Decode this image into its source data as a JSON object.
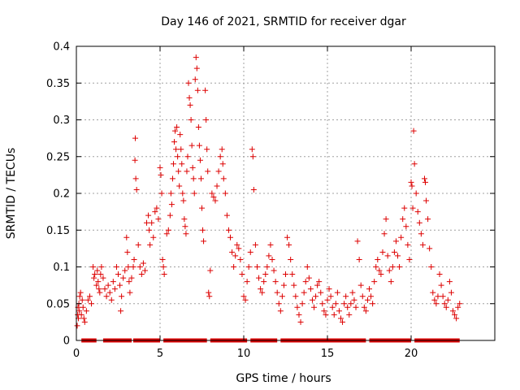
{
  "chart_data": {
    "type": "scatter",
    "title": "Day 146 of 2021, SRMTID for receiver dgar",
    "xlabel": "GPS time / hours",
    "ylabel": "SRMTID / TECUs",
    "xlim": [
      0,
      25
    ],
    "ylim": [
      0,
      0.4
    ],
    "x_ticks": [
      0,
      5,
      10,
      15,
      20
    ],
    "y_ticks": [
      0,
      0.05,
      0.1,
      0.15,
      0.2,
      0.25,
      0.3,
      0.35,
      0.4
    ],
    "x_tick_labels": [
      "0",
      "5",
      "10",
      "15",
      "20"
    ],
    "y_tick_labels": [
      "0",
      "0.05",
      "0.1",
      "0.15",
      "0.2",
      "0.25",
      "0.3",
      "0.35",
      "0.4"
    ],
    "grid": true,
    "marker": "plus",
    "series_color": "#dd0000",
    "series": [
      {
        "name": "SRMTID",
        "points": [
          [
            0.05,
            0.02
          ],
          [
            0.08,
            0.035
          ],
          [
            0.1,
            0.045
          ],
          [
            0.12,
            0.03
          ],
          [
            0.15,
            0.05
          ],
          [
            0.18,
            0.04
          ],
          [
            0.2,
            0.06
          ],
          [
            0.25,
            0.065
          ],
          [
            0.3,
            0.035
          ],
          [
            0.35,
            0.055
          ],
          [
            0.4,
            0.045
          ],
          [
            0.45,
            0.03
          ],
          [
            0.5,
            0.025
          ],
          [
            0.6,
            0.04
          ],
          [
            0.7,
            0.055
          ],
          [
            0.8,
            0.06
          ],
          [
            0.9,
            0.05
          ],
          [
            1.0,
            0.1
          ],
          [
            1.05,
            0.085
          ],
          [
            1.1,
            0.09
          ],
          [
            1.2,
            0.075
          ],
          [
            1.25,
            0.095
          ],
          [
            1.3,
            0.08
          ],
          [
            1.35,
            0.07
          ],
          [
            1.4,
            0.065
          ],
          [
            1.45,
            0.09
          ],
          [
            1.5,
            0.1
          ],
          [
            1.6,
            0.085
          ],
          [
            1.7,
            0.07
          ],
          [
            1.8,
            0.06
          ],
          [
            1.9,
            0.075
          ],
          [
            2.0,
            0.065
          ],
          [
            2.1,
            0.055
          ],
          [
            2.2,
            0.08
          ],
          [
            2.3,
            0.07
          ],
          [
            2.4,
            0.1
          ],
          [
            2.5,
            0.09
          ],
          [
            2.6,
            0.075
          ],
          [
            2.65,
            0.04
          ],
          [
            2.7,
            0.06
          ],
          [
            2.8,
            0.085
          ],
          [
            2.9,
            0.095
          ],
          [
            3.0,
            0.14
          ],
          [
            3.05,
            0.12
          ],
          [
            3.1,
            0.1
          ],
          [
            3.15,
            0.08
          ],
          [
            3.2,
            0.065
          ],
          [
            3.3,
            0.085
          ],
          [
            3.4,
            0.1
          ],
          [
            3.45,
            0.11
          ],
          [
            3.5,
            0.245
          ],
          [
            3.52,
            0.275
          ],
          [
            3.55,
            0.22
          ],
          [
            3.6,
            0.205
          ],
          [
            3.7,
            0.13
          ],
          [
            3.8,
            0.1
          ],
          [
            3.9,
            0.09
          ],
          [
            4.0,
            0.105
          ],
          [
            4.1,
            0.095
          ],
          [
            4.2,
            0.16
          ],
          [
            4.3,
            0.17
          ],
          [
            4.35,
            0.15
          ],
          [
            4.4,
            0.13
          ],
          [
            4.5,
            0.16
          ],
          [
            4.6,
            0.14
          ],
          [
            4.7,
            0.175
          ],
          [
            4.8,
            0.18
          ],
          [
            4.9,
            0.165
          ],
          [
            5.0,
            0.235
          ],
          [
            5.05,
            0.225
          ],
          [
            5.1,
            0.2
          ],
          [
            5.15,
            0.11
          ],
          [
            5.2,
            0.1
          ],
          [
            5.25,
            0.09
          ],
          [
            5.4,
            0.145
          ],
          [
            5.5,
            0.15
          ],
          [
            5.6,
            0.17
          ],
          [
            5.65,
            0.2
          ],
          [
            5.7,
            0.185
          ],
          [
            5.75,
            0.22
          ],
          [
            5.8,
            0.24
          ],
          [
            5.85,
            0.27
          ],
          [
            5.9,
            0.285
          ],
          [
            5.95,
            0.26
          ],
          [
            6.0,
            0.29
          ],
          [
            6.05,
            0.25
          ],
          [
            6.1,
            0.23
          ],
          [
            6.15,
            0.21
          ],
          [
            6.2,
            0.28
          ],
          [
            6.25,
            0.26
          ],
          [
            6.3,
            0.24
          ],
          [
            6.35,
            0.2
          ],
          [
            6.4,
            0.19
          ],
          [
            6.45,
            0.165
          ],
          [
            6.5,
            0.155
          ],
          [
            6.55,
            0.145
          ],
          [
            6.6,
            0.23
          ],
          [
            6.65,
            0.25
          ],
          [
            6.7,
            0.35
          ],
          [
            6.75,
            0.33
          ],
          [
            6.8,
            0.32
          ],
          [
            6.85,
            0.3
          ],
          [
            6.9,
            0.265
          ],
          [
            6.95,
            0.235
          ],
          [
            7.0,
            0.22
          ],
          [
            7.05,
            0.2
          ],
          [
            7.1,
            0.355
          ],
          [
            7.15,
            0.385
          ],
          [
            7.2,
            0.37
          ],
          [
            7.25,
            0.34
          ],
          [
            7.3,
            0.29
          ],
          [
            7.35,
            0.265
          ],
          [
            7.4,
            0.245
          ],
          [
            7.45,
            0.22
          ],
          [
            7.5,
            0.18
          ],
          [
            7.55,
            0.15
          ],
          [
            7.6,
            0.135
          ],
          [
            7.7,
            0.34
          ],
          [
            7.75,
            0.3
          ],
          [
            7.8,
            0.26
          ],
          [
            7.85,
            0.23
          ],
          [
            7.9,
            0.065
          ],
          [
            7.95,
            0.06
          ],
          [
            8.0,
            0.095
          ],
          [
            8.1,
            0.2
          ],
          [
            8.2,
            0.195
          ],
          [
            8.3,
            0.19
          ],
          [
            8.4,
            0.21
          ],
          [
            8.5,
            0.23
          ],
          [
            8.6,
            0.25
          ],
          [
            8.7,
            0.26
          ],
          [
            8.75,
            0.24
          ],
          [
            8.8,
            0.22
          ],
          [
            8.9,
            0.2
          ],
          [
            9.0,
            0.17
          ],
          [
            9.1,
            0.15
          ],
          [
            9.2,
            0.14
          ],
          [
            9.3,
            0.12
          ],
          [
            9.4,
            0.1
          ],
          [
            9.5,
            0.115
          ],
          [
            9.6,
            0.13
          ],
          [
            9.7,
            0.125
          ],
          [
            9.8,
            0.11
          ],
          [
            9.9,
            0.09
          ],
          [
            10.0,
            0.06
          ],
          [
            10.1,
            0.055
          ],
          [
            10.2,
            0.08
          ],
          [
            10.3,
            0.1
          ],
          [
            10.4,
            0.12
          ],
          [
            10.5,
            0.26
          ],
          [
            10.55,
            0.25
          ],
          [
            10.6,
            0.205
          ],
          [
            10.7,
            0.13
          ],
          [
            10.8,
            0.1
          ],
          [
            10.9,
            0.085
          ],
          [
            11.0,
            0.07
          ],
          [
            11.1,
            0.065
          ],
          [
            11.2,
            0.08
          ],
          [
            11.3,
            0.09
          ],
          [
            11.4,
            0.1
          ],
          [
            11.5,
            0.115
          ],
          [
            11.6,
            0.13
          ],
          [
            11.7,
            0.11
          ],
          [
            11.8,
            0.095
          ],
          [
            11.9,
            0.08
          ],
          [
            12.0,
            0.065
          ],
          [
            12.1,
            0.05
          ],
          [
            12.2,
            0.04
          ],
          [
            12.3,
            0.06
          ],
          [
            12.4,
            0.075
          ],
          [
            12.5,
            0.09
          ],
          [
            12.6,
            0.14
          ],
          [
            12.7,
            0.13
          ],
          [
            12.8,
            0.11
          ],
          [
            12.9,
            0.09
          ],
          [
            13.0,
            0.075
          ],
          [
            13.1,
            0.06
          ],
          [
            13.2,
            0.045
          ],
          [
            13.3,
            0.035
          ],
          [
            13.4,
            0.025
          ],
          [
            13.5,
            0.05
          ],
          [
            13.6,
            0.065
          ],
          [
            13.7,
            0.08
          ],
          [
            13.8,
            0.1
          ],
          [
            13.9,
            0.085
          ],
          [
            14.0,
            0.07
          ],
          [
            14.1,
            0.055
          ],
          [
            14.2,
            0.045
          ],
          [
            14.3,
            0.06
          ],
          [
            14.4,
            0.075
          ],
          [
            14.5,
            0.08
          ],
          [
            14.6,
            0.065
          ],
          [
            14.7,
            0.05
          ],
          [
            14.8,
            0.04
          ],
          [
            14.9,
            0.035
          ],
          [
            15.0,
            0.055
          ],
          [
            15.1,
            0.07
          ],
          [
            15.2,
            0.06
          ],
          [
            15.3,
            0.045
          ],
          [
            15.4,
            0.035
          ],
          [
            15.5,
            0.05
          ],
          [
            15.6,
            0.065
          ],
          [
            15.7,
            0.04
          ],
          [
            15.8,
            0.03
          ],
          [
            15.9,
            0.025
          ],
          [
            16.0,
            0.05
          ],
          [
            16.1,
            0.06
          ],
          [
            16.2,
            0.045
          ],
          [
            16.3,
            0.035
          ],
          [
            16.4,
            0.05
          ],
          [
            16.5,
            0.065
          ],
          [
            16.6,
            0.055
          ],
          [
            16.7,
            0.045
          ],
          [
            16.8,
            0.135
          ],
          [
            16.9,
            0.11
          ],
          [
            17.0,
            0.075
          ],
          [
            17.1,
            0.06
          ],
          [
            17.2,
            0.045
          ],
          [
            17.3,
            0.04
          ],
          [
            17.4,
            0.055
          ],
          [
            17.5,
            0.07
          ],
          [
            17.6,
            0.06
          ],
          [
            17.7,
            0.05
          ],
          [
            17.8,
            0.08
          ],
          [
            17.9,
            0.1
          ],
          [
            18.0,
            0.11
          ],
          [
            18.1,
            0.095
          ],
          [
            18.2,
            0.09
          ],
          [
            18.3,
            0.12
          ],
          [
            18.4,
            0.145
          ],
          [
            18.5,
            0.165
          ],
          [
            18.6,
            0.115
          ],
          [
            18.7,
            0.095
          ],
          [
            18.8,
            0.08
          ],
          [
            18.9,
            0.1
          ],
          [
            19.0,
            0.12
          ],
          [
            19.1,
            0.135
          ],
          [
            19.2,
            0.115
          ],
          [
            19.3,
            0.1
          ],
          [
            19.4,
            0.14
          ],
          [
            19.5,
            0.165
          ],
          [
            19.6,
            0.18
          ],
          [
            19.7,
            0.155
          ],
          [
            19.8,
            0.13
          ],
          [
            19.9,
            0.11
          ],
          [
            20.0,
            0.215
          ],
          [
            20.05,
            0.21
          ],
          [
            20.1,
            0.18
          ],
          [
            20.15,
            0.285
          ],
          [
            20.2,
            0.24
          ],
          [
            20.3,
            0.2
          ],
          [
            20.4,
            0.175
          ],
          [
            20.5,
            0.16
          ],
          [
            20.6,
            0.145
          ],
          [
            20.7,
            0.13
          ],
          [
            20.8,
            0.22
          ],
          [
            20.85,
            0.215
          ],
          [
            20.9,
            0.19
          ],
          [
            21.0,
            0.165
          ],
          [
            21.1,
            0.125
          ],
          [
            21.2,
            0.1
          ],
          [
            21.3,
            0.065
          ],
          [
            21.4,
            0.055
          ],
          [
            21.5,
            0.05
          ],
          [
            21.6,
            0.06
          ],
          [
            21.7,
            0.09
          ],
          [
            21.8,
            0.075
          ],
          [
            21.9,
            0.06
          ],
          [
            22.0,
            0.05
          ],
          [
            22.1,
            0.045
          ],
          [
            22.2,
            0.055
          ],
          [
            22.3,
            0.08
          ],
          [
            22.4,
            0.065
          ],
          [
            22.5,
            0.04
          ],
          [
            22.6,
            0.035
          ],
          [
            22.7,
            0.03
          ],
          [
            22.8,
            0.045
          ],
          [
            22.9,
            0.05
          ]
        ]
      }
    ],
    "zero_band": {
      "y": 0,
      "segments": [
        [
          0.3,
          1.2
        ],
        [
          1.6,
          3.3
        ],
        [
          3.4,
          5.0
        ],
        [
          5.2,
          7.8
        ],
        [
          8.0,
          10.2
        ],
        [
          10.4,
          12.0
        ],
        [
          12.2,
          17.3
        ],
        [
          17.5,
          20.0
        ],
        [
          20.2,
          22.9
        ]
      ]
    }
  }
}
